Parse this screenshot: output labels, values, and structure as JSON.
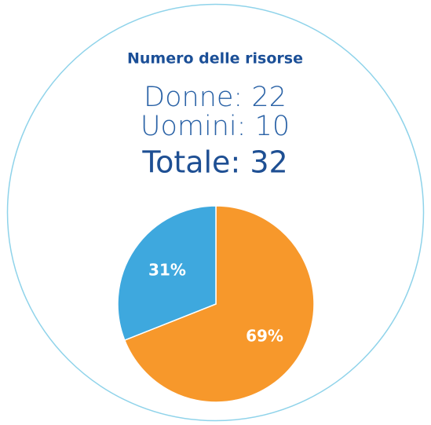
{
  "chart_data": {
    "type": "pie",
    "title": "Numero delle risorse",
    "annotations": [
      "Donne: 22",
      "Uomini: 10",
      "Totale: 32"
    ],
    "series": [
      {
        "values": [
          69,
          31
        ],
        "value_labels": [
          "69%",
          "31%"
        ],
        "colors": [
          "#f7982b",
          "#3ea8de"
        ]
      }
    ]
  }
}
